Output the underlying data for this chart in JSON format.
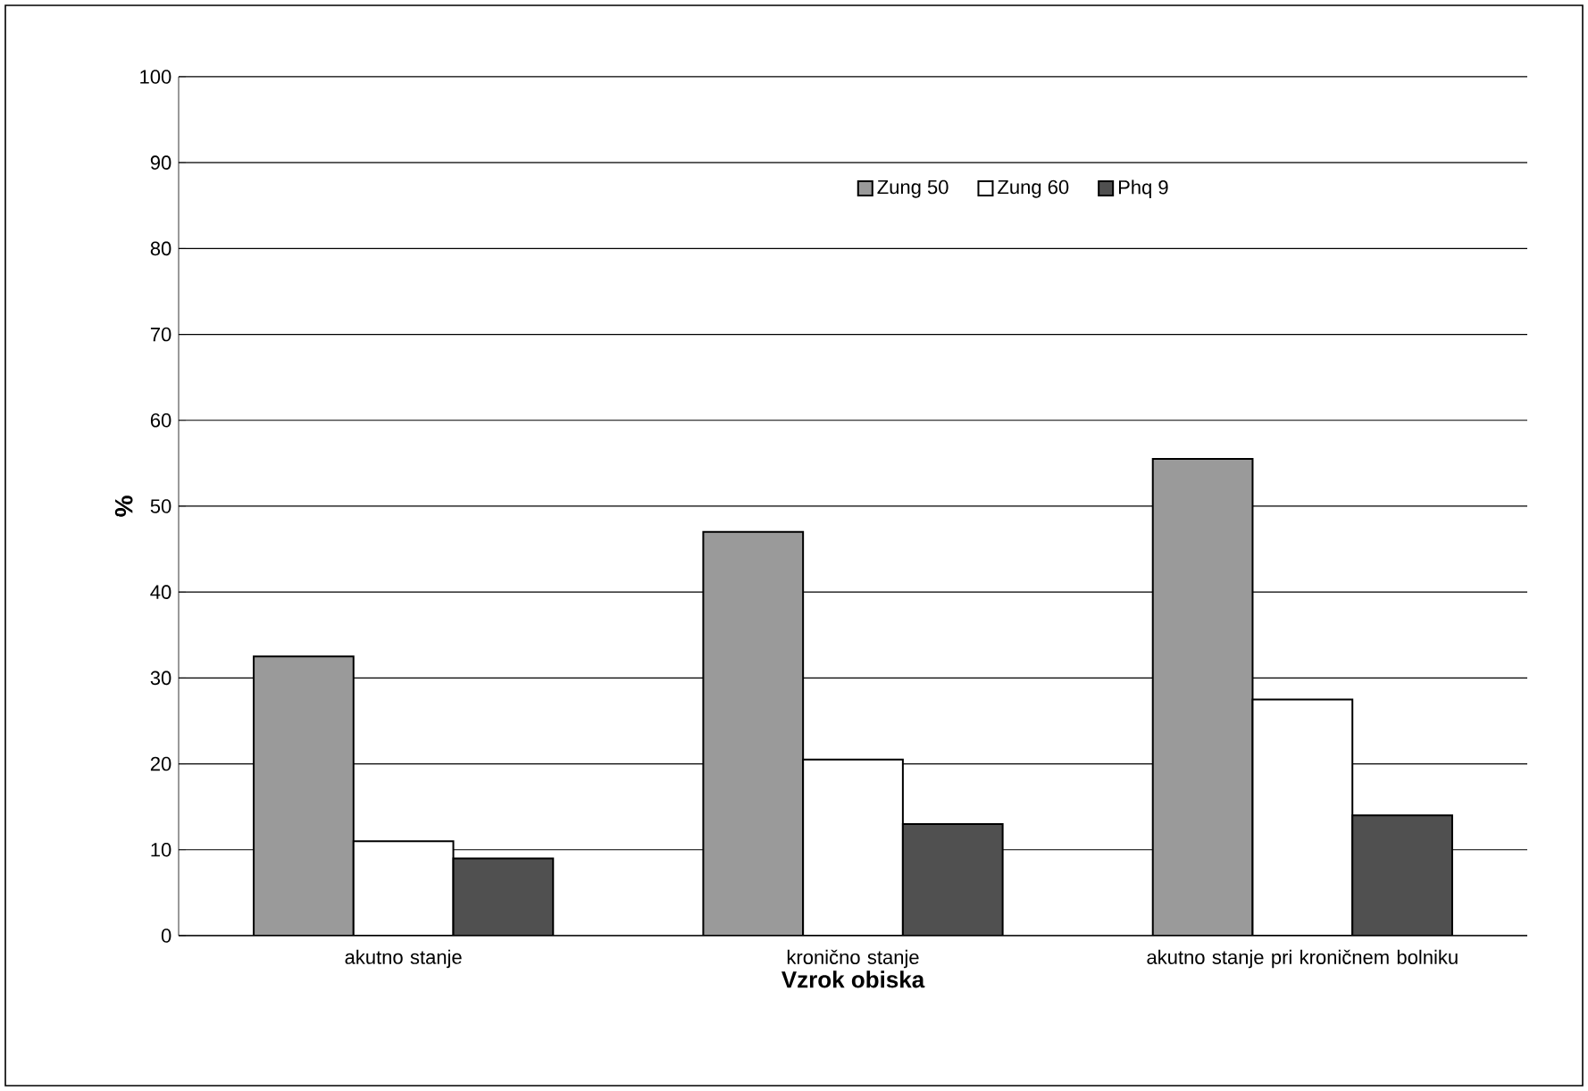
{
  "chart_data": {
    "type": "bar",
    "xlabel": "Vzrok obiska",
    "ylabel": "%",
    "categories": [
      "akutno stanje",
      "kronično stanje",
      "akutno stanje pri kroničnem bolniku"
    ],
    "series": [
      {
        "name": "Zung 50",
        "color": "#9a9a9a",
        "values": [
          32.5,
          47,
          55.5
        ]
      },
      {
        "name": "Zung 60",
        "color": "#ffffff",
        "values": [
          11,
          20.5,
          27.5
        ]
      },
      {
        "name": "Phq 9",
        "color": "#505050",
        "values": [
          9,
          13,
          14
        ]
      }
    ],
    "ylim": [
      0,
      100
    ],
    "yticks": [
      0,
      10,
      20,
      30,
      40,
      50,
      60,
      70,
      80,
      90,
      100
    ],
    "grid": "y",
    "legend": "top"
  }
}
